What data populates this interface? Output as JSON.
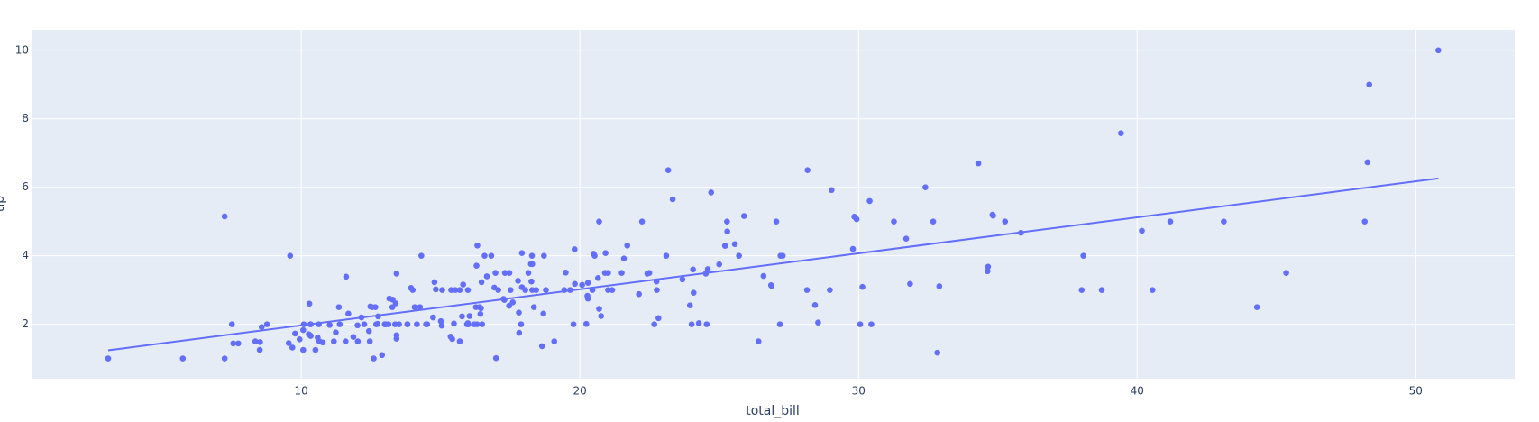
{
  "chart_data": {
    "type": "scatter",
    "x_label": "total_bill",
    "y_label": "tip",
    "color": "#636efa",
    "grid": true,
    "xlim": [
      0.32,
      53.55
    ],
    "ylim": [
      0.41,
      10.6
    ],
    "xticks": [
      10,
      20,
      30,
      40,
      50
    ],
    "yticks": [
      2,
      4,
      6,
      8,
      10
    ],
    "x": [
      16.99,
      10.34,
      21.01,
      23.68,
      24.59,
      25.29,
      8.77,
      26.88,
      15.04,
      14.78,
      10.27,
      35.26,
      15.42,
      18.43,
      14.83,
      21.58,
      10.33,
      16.29,
      16.97,
      20.65,
      17.92,
      20.29,
      15.77,
      39.42,
      19.82,
      17.81,
      13.37,
      12.69,
      21.7,
      19.65,
      9.55,
      18.35,
      15.06,
      20.69,
      17.78,
      24.06,
      16.31,
      16.93,
      18.69,
      31.27,
      16.04,
      17.46,
      13.94,
      9.68,
      30.4,
      18.29,
      22.23,
      32.4,
      28.55,
      18.04,
      12.54,
      10.29,
      34.81,
      9.94,
      25.56,
      19.49,
      38.01,
      26.41,
      11.24,
      48.27,
      20.29,
      13.81,
      11.02,
      18.29,
      17.59,
      20.08,
      16.45,
      3.07,
      20.23,
      15.01,
      12.02,
      17.07,
      26.86,
      25.28,
      14.73,
      10.51,
      17.92,
      27.2,
      22.76,
      17.29,
      19.44,
      16.66,
      10.07,
      32.68,
      15.98,
      34.83,
      13.03,
      18.28,
      24.71,
      21.16,
      28.97,
      22.49,
      5.75,
      16.32,
      22.75,
      40.17,
      27.28,
      12.03,
      21.01,
      12.46,
      11.35,
      15.38,
      44.3,
      22.42,
      20.92,
      15.36,
      20.49,
      25.21,
      18.24,
      14.31,
      14.0,
      7.25,
      38.07,
      23.95,
      25.71,
      17.31,
      29.93,
      10.65,
      12.43,
      24.08,
      11.69,
      13.42,
      14.26,
      15.95,
      12.48,
      29.8,
      8.52,
      14.52,
      11.38,
      22.82,
      19.08,
      20.27,
      11.17,
      12.26,
      18.26,
      8.51,
      10.33,
      14.15,
      16.0,
      13.16,
      17.47,
      34.3,
      41.19,
      27.05,
      16.43,
      8.35,
      18.64,
      11.87,
      9.78,
      7.51,
      14.07,
      13.13,
      17.26,
      24.55,
      19.77,
      29.85,
      48.17,
      25.0,
      13.39,
      16.49,
      21.5,
      12.66,
      16.21,
      13.81,
      17.51,
      24.52,
      20.76,
      31.71,
      10.59,
      10.63,
      50.81,
      15.81,
      7.25,
      31.85,
      16.82,
      32.9,
      17.89,
      14.48,
      9.6,
      34.63,
      34.65,
      23.33,
      45.35,
      23.17,
      40.55,
      20.69,
      20.9,
      30.46,
      18.15,
      23.1,
      15.69,
      19.81,
      28.44,
      15.48,
      16.58,
      7.56,
      10.34,
      43.11,
      13.0,
      13.51,
      18.71,
      12.74,
      13.0,
      16.4,
      20.53,
      16.47,
      26.59,
      38.73,
      24.27,
      12.76,
      30.06,
      25.89,
      48.33,
      13.27,
      28.17,
      12.9,
      28.15,
      11.59,
      7.74,
      30.14,
      12.16,
      13.42,
      8.58,
      15.98,
      13.42,
      16.27,
      10.09,
      20.45,
      13.28,
      22.12,
      24.01,
      15.69,
      11.61,
      10.77,
      15.53,
      10.07,
      12.6,
      32.83,
      35.83,
      29.03,
      27.18,
      22.67,
      17.82,
      18.78
    ],
    "values": [
      1.01,
      1.66,
      3.5,
      3.31,
      3.61,
      4.71,
      2.0,
      3.12,
      1.96,
      3.23,
      1.71,
      5.0,
      1.57,
      3.0,
      3.02,
      3.92,
      1.67,
      3.71,
      3.5,
      3.35,
      4.08,
      2.75,
      2.23,
      7.58,
      3.18,
      2.34,
      2.0,
      2.0,
      4.3,
      3.0,
      1.45,
      2.5,
      3.0,
      2.45,
      3.27,
      3.6,
      2.0,
      3.07,
      2.31,
      5.0,
      2.24,
      2.54,
      3.06,
      1.32,
      5.6,
      3.0,
      5.0,
      6.0,
      2.05,
      3.0,
      2.5,
      2.6,
      5.2,
      1.56,
      4.34,
      3.51,
      3.0,
      1.5,
      1.76,
      6.73,
      3.21,
      2.0,
      1.98,
      3.76,
      2.64,
      3.15,
      2.47,
      1.0,
      2.01,
      2.09,
      1.97,
      3.0,
      3.14,
      5.0,
      2.2,
      1.25,
      3.08,
      4.0,
      3.0,
      2.71,
      3.0,
      3.4,
      1.83,
      5.0,
      2.03,
      5.17,
      2.0,
      4.0,
      5.85,
      3.0,
      3.0,
      3.5,
      1.0,
      4.3,
      3.25,
      4.73,
      4.0,
      1.5,
      3.0,
      1.5,
      2.5,
      3.0,
      2.5,
      3.48,
      4.08,
      1.64,
      4.06,
      4.29,
      3.76,
      4.0,
      3.0,
      1.0,
      4.0,
      2.55,
      4.0,
      3.5,
      5.07,
      1.5,
      1.8,
      2.92,
      2.31,
      1.68,
      2.5,
      2.0,
      2.52,
      4.2,
      1.48,
      2.0,
      2.0,
      2.18,
      1.5,
      2.83,
      1.5,
      2.0,
      3.25,
      1.25,
      2.0,
      2.0,
      2.0,
      2.75,
      3.5,
      6.7,
      5.0,
      5.0,
      2.3,
      1.5,
      1.36,
      1.63,
      1.73,
      2.0,
      2.5,
      2.0,
      2.74,
      2.0,
      2.0,
      5.14,
      5.0,
      3.75,
      2.61,
      2.0,
      3.5,
      2.5,
      2.0,
      2.0,
      3.0,
      3.48,
      2.24,
      4.5,
      1.61,
      2.0,
      10.0,
      3.16,
      5.15,
      3.18,
      4.0,
      3.11,
      2.0,
      2.0,
      4.0,
      3.55,
      3.68,
      5.65,
      3.5,
      6.5,
      3.0,
      5.0,
      3.5,
      2.0,
      3.5,
      4.0,
      1.5,
      4.19,
      2.56,
      2.02,
      4.0,
      1.44,
      2.0,
      5.0,
      2.0,
      2.0,
      4.0,
      2.01,
      2.0,
      2.5,
      4.0,
      3.23,
      3.41,
      3.0,
      2.03,
      2.23,
      2.0,
      5.16,
      9.0,
      2.5,
      6.5,
      1.1,
      3.0,
      1.5,
      1.44,
      3.09,
      2.2,
      3.48,
      1.92,
      3.0,
      1.58,
      2.5,
      2.0,
      3.0,
      2.72,
      2.88,
      2.0,
      3.0,
      3.39,
      1.47,
      3.0,
      1.25,
      1.0,
      1.17,
      4.67,
      5.92,
      2.0,
      2.0,
      1.75,
      3.0
    ],
    "trendline": {
      "type": "line",
      "x": [
        3.07,
        50.81
      ],
      "values": [
        1.24,
        6.26
      ]
    }
  }
}
